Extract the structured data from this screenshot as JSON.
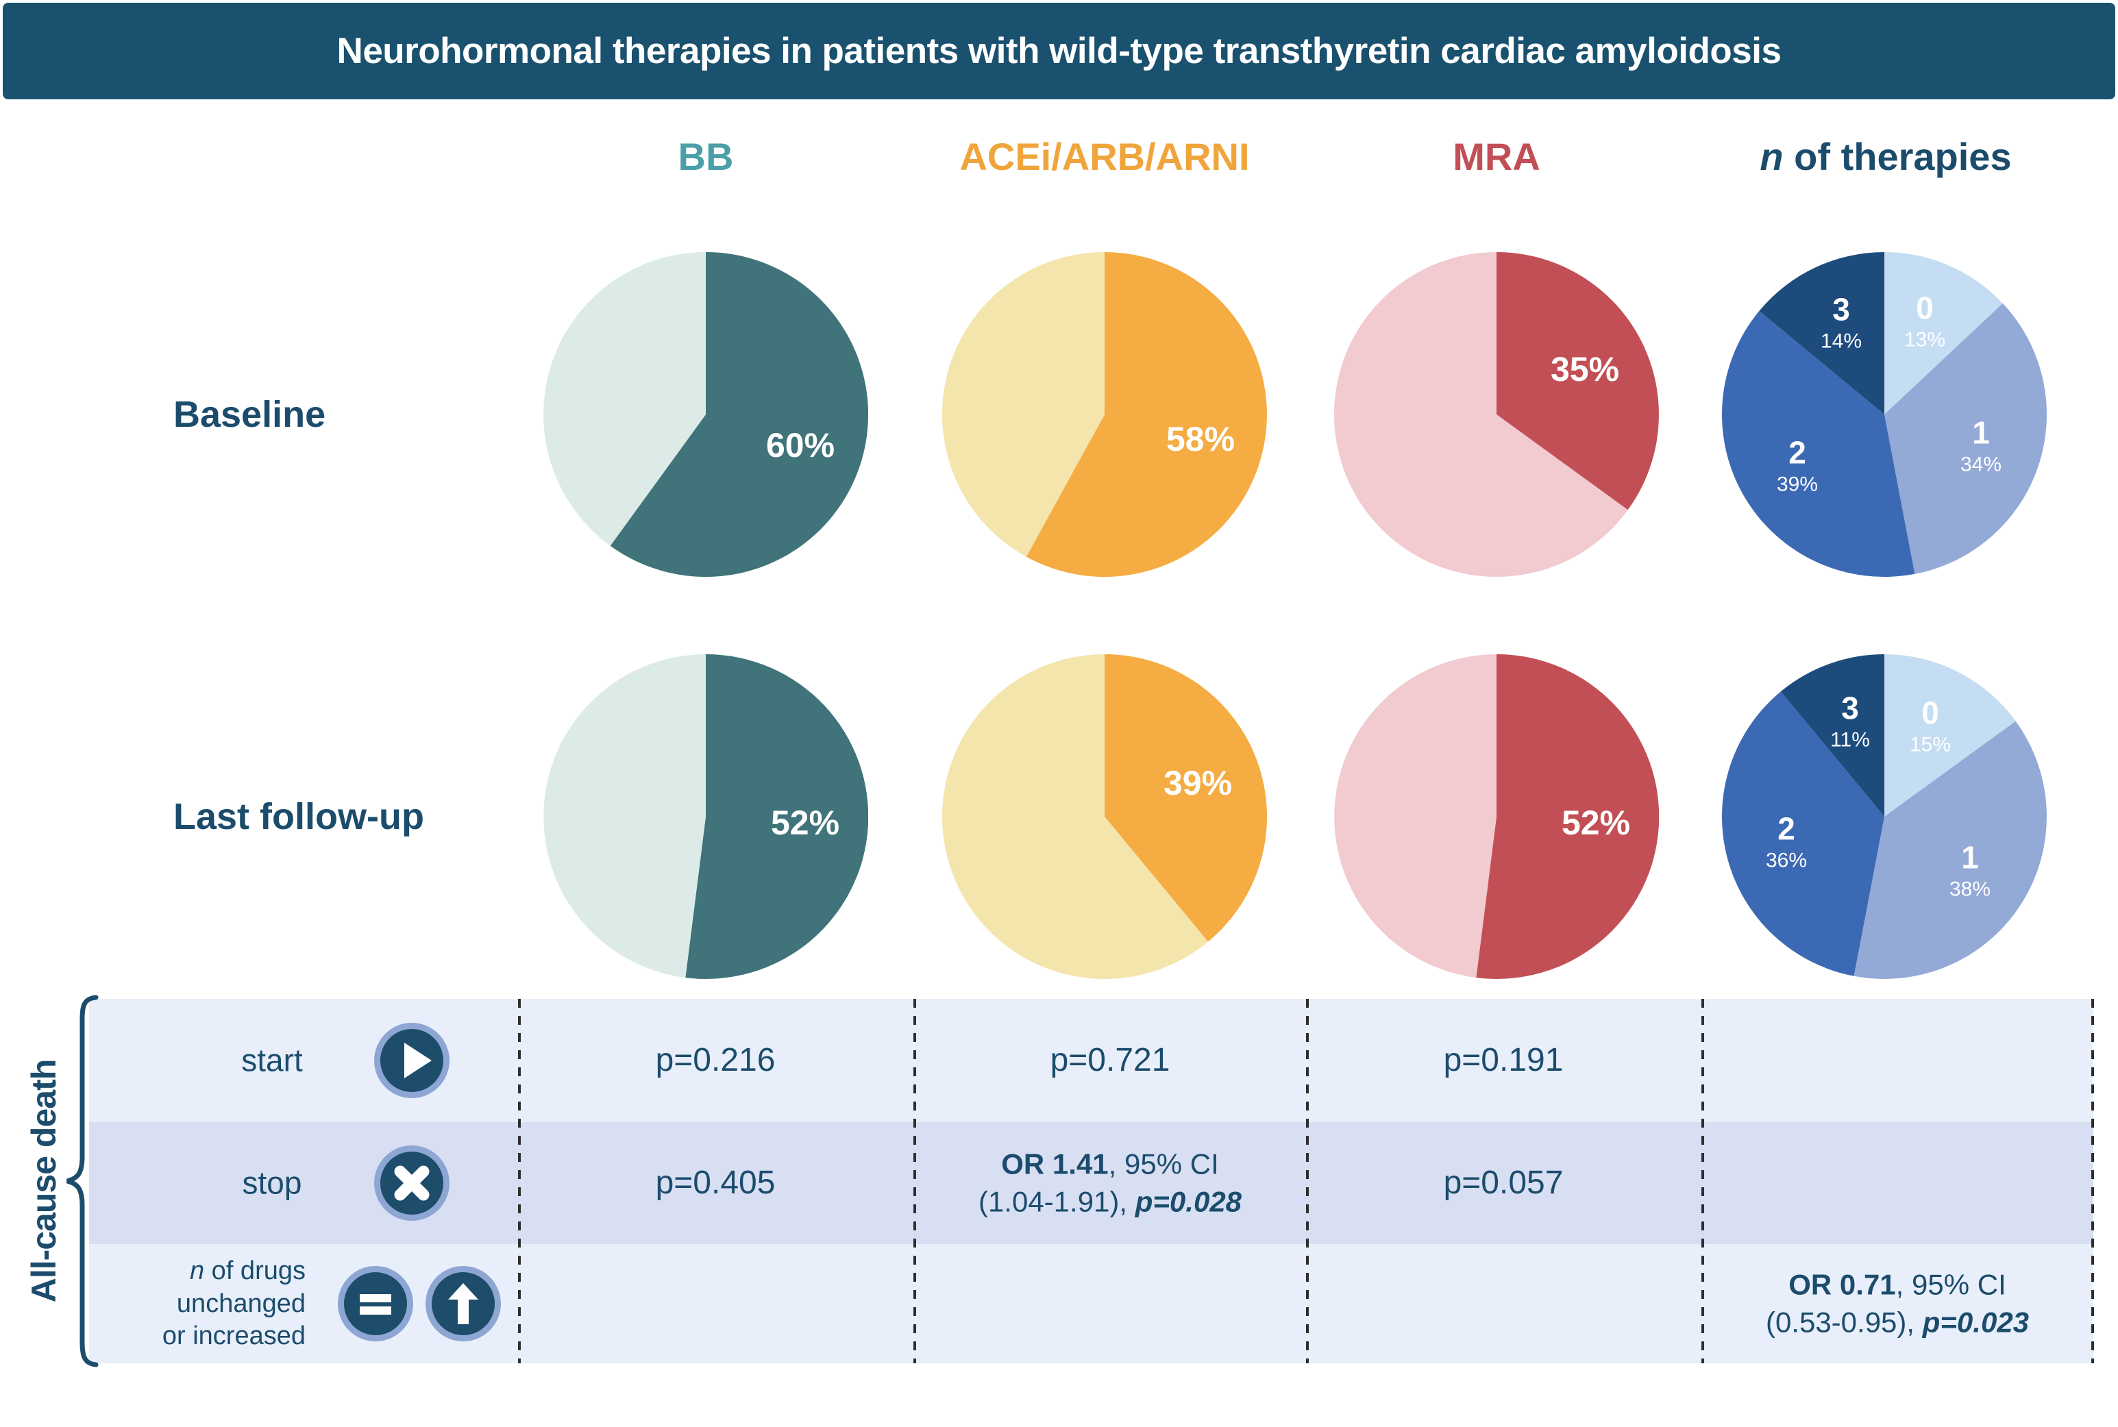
{
  "title": "Neurohormonal therapies in patients with wild-type transthyretin cardiac amyloidosis",
  "colors": {
    "title_bar": "#1a516f",
    "navy": "#1c4c6c",
    "bb": "#4a9fa8",
    "bb_dark": "#40737a",
    "bb_light": "#dcebe8",
    "acei": "#efa53c",
    "acei_dark": "#f5ac42",
    "acei_light": "#f4e5ad",
    "mra": "#c14f55",
    "mra_dark": "#c24f55",
    "mra_light": "#f1cbd0",
    "n0": "#c5ddf2",
    "n1": "#93a9d6",
    "n2": "#3c69b4",
    "n3": "#1d4b7c",
    "row_light": "#e8effa",
    "row_dark": "#d8dff3",
    "icon_fill": "#1d4d6b",
    "icon_ring": "#8ea6d4",
    "dash": "#2e2e2e"
  },
  "columns": [
    {
      "label": "BB"
    },
    {
      "label": "ACEi/ARB/ARNI"
    },
    {
      "label": "MRA"
    },
    {
      "label_italic": "n",
      "label_rest": " of therapies"
    }
  ],
  "pie_rows": [
    {
      "label": "Baseline"
    },
    {
      "label": "Last follow-up"
    }
  ],
  "chart_data": {
    "type": "pie",
    "rows": [
      "Baseline",
      "Last follow-up"
    ],
    "columns": [
      "BB",
      "ACEi/ARB/ARNI",
      "MRA",
      "n of therapies"
    ],
    "pies": [
      {
        "row": 0,
        "col": 0,
        "slices": [
          {
            "name": "on-BB",
            "percent": 60,
            "color": "#40737a",
            "label": "60%"
          },
          {
            "name": "not-on-BB",
            "percent": 40,
            "color": "#dcebe8"
          }
        ]
      },
      {
        "row": 0,
        "col": 1,
        "slices": [
          {
            "name": "on-ACEi-ARB-ARNI",
            "percent": 58,
            "color": "#f5ac42",
            "label": "58%"
          },
          {
            "name": "not-on-ACEi-ARB-ARNI",
            "percent": 42,
            "color": "#f4e5ad"
          }
        ]
      },
      {
        "row": 0,
        "col": 2,
        "slices": [
          {
            "name": "on-MRA",
            "percent": 35,
            "color": "#c24f55",
            "label": "35%"
          },
          {
            "name": "not-on-MRA",
            "percent": 65,
            "color": "#f1cbd0"
          }
        ]
      },
      {
        "row": 0,
        "col": 3,
        "slices": [
          {
            "name": "0",
            "percent": 13,
            "color": "#c5ddf2",
            "num": "0",
            "pct": "13%"
          },
          {
            "name": "1",
            "percent": 34,
            "color": "#93a9d6",
            "num": "1",
            "pct": "34%"
          },
          {
            "name": "2",
            "percent": 39,
            "color": "#3c69b4",
            "num": "2",
            "pct": "39%"
          },
          {
            "name": "3",
            "percent": 14,
            "color": "#1d4b7c",
            "num": "3",
            "pct": "14%"
          }
        ]
      },
      {
        "row": 1,
        "col": 0,
        "slices": [
          {
            "name": "on-BB",
            "percent": 52,
            "color": "#40737a",
            "label": "52%"
          },
          {
            "name": "not-on-BB",
            "percent": 48,
            "color": "#dcebe8"
          }
        ]
      },
      {
        "row": 1,
        "col": 1,
        "slices": [
          {
            "name": "on-ACEi-ARB-ARNI",
            "percent": 39,
            "color": "#f5ac42",
            "label": "39%"
          },
          {
            "name": "not-on-ACEi-ARB-ARNI",
            "percent": 61,
            "color": "#f4e5ad"
          }
        ]
      },
      {
        "row": 1,
        "col": 2,
        "slices": [
          {
            "name": "on-MRA",
            "percent": 52,
            "color": "#c24f55",
            "label": "52%"
          },
          {
            "name": "not-on-MRA",
            "percent": 48,
            "color": "#f1cbd0"
          }
        ]
      },
      {
        "row": 1,
        "col": 3,
        "slices": [
          {
            "name": "0",
            "percent": 15,
            "color": "#c5ddf2",
            "num": "0",
            "pct": "15%"
          },
          {
            "name": "1",
            "percent": 38,
            "color": "#93a9d6",
            "num": "1",
            "pct": "38%"
          },
          {
            "name": "2",
            "percent": 36,
            "color": "#3c69b4",
            "num": "2",
            "pct": "36%"
          },
          {
            "name": "3",
            "percent": 11,
            "color": "#1d4b7c",
            "num": "3",
            "pct": "11%"
          }
        ]
      }
    ]
  },
  "table": {
    "group_label": "All-cause death",
    "rows": [
      {
        "label_lines": [
          [
            {
              "t": "start"
            }
          ]
        ],
        "icons": [
          "play"
        ],
        "cells": [
          {
            "lines": [
              [
                {
                  "t": "p=0.216"
                }
              ]
            ]
          },
          {
            "lines": [
              [
                {
                  "t": "p=0.721"
                }
              ]
            ]
          },
          {
            "lines": [
              [
                {
                  "t": "p=0.191"
                }
              ]
            ]
          },
          {
            "lines": []
          }
        ]
      },
      {
        "label_lines": [
          [
            {
              "t": "stop"
            }
          ]
        ],
        "icons": [
          "cross"
        ],
        "cells": [
          {
            "lines": [
              [
                {
                  "t": "p=0.405"
                }
              ]
            ]
          },
          {
            "lines": [
              [
                {
                  "t": "OR 1.41",
                  "b": true
                },
                {
                  "t": ", 95% CI"
                }
              ],
              [
                {
                  "t": "(1.04-1.91), "
                },
                {
                  "t": "p=0.028",
                  "b": true,
                  "i": true
                }
              ]
            ]
          },
          {
            "lines": [
              [
                {
                  "t": "p=0.057"
                }
              ]
            ]
          },
          {
            "lines": []
          }
        ]
      },
      {
        "label_lines": [
          [
            {
              "t": "n",
              "i": true
            },
            {
              "t": " of drugs"
            }
          ],
          [
            {
              "t": "unchanged"
            }
          ],
          [
            {
              "t": "or increased"
            }
          ]
        ],
        "icons": [
          "equals",
          "up-arrow"
        ],
        "cells": [
          {
            "lines": []
          },
          {
            "lines": []
          },
          {
            "lines": []
          },
          {
            "lines": [
              [
                {
                  "t": "OR 0.71",
                  "b": true
                },
                {
                  "t": ", 95% CI"
                }
              ],
              [
                {
                  "t": "(0.53-0.95), "
                },
                {
                  "t": "p=0.023",
                  "b": true,
                  "i": true
                }
              ]
            ]
          }
        ]
      }
    ]
  }
}
